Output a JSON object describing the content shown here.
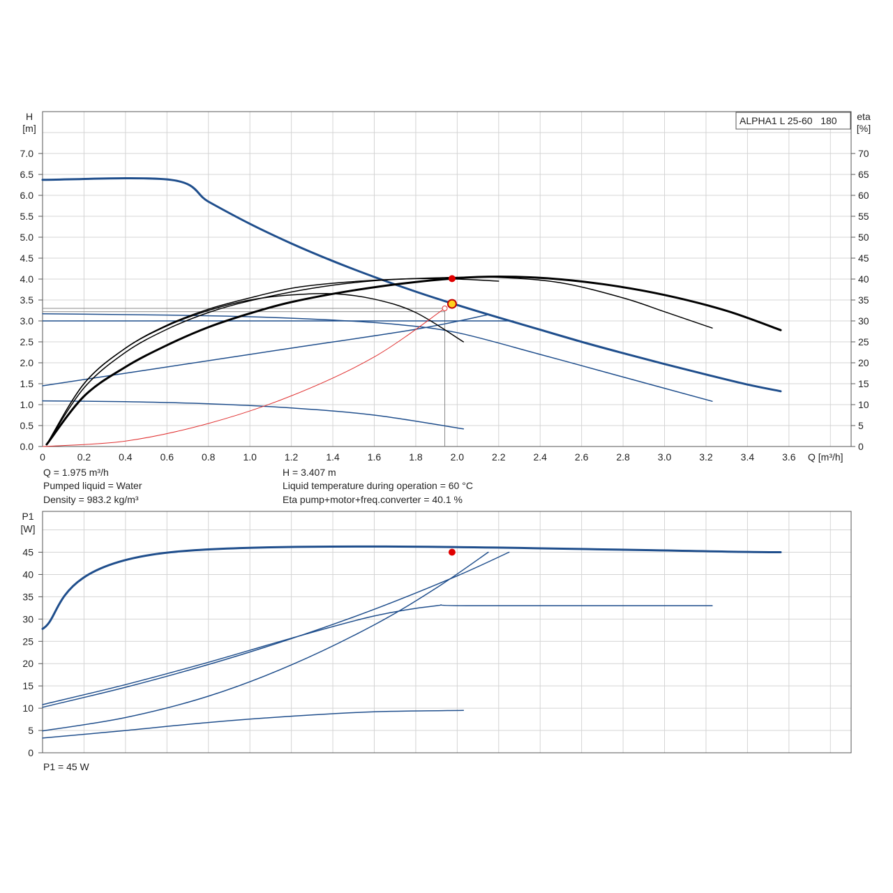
{
  "chart_data": [
    {
      "type": "line",
      "name_box": "ALPHA1 L 25-60   180",
      "xlabel": "Q [m³/h]",
      "ylabel_top": "H",
      "ylabel_bottom": "[m]",
      "y2label_top": "eta",
      "y2label_bottom": "[%]",
      "xlim": [
        0,
        3.9
      ],
      "ylim": [
        0,
        8
      ],
      "y2lim": [
        0,
        80
      ],
      "x_ticks": [
        "0",
        "0.2",
        "0.4",
        "0.6",
        "0.8",
        "1.0",
        "1.2",
        "1.4",
        "1.6",
        "1.8",
        "2.0",
        "2.2",
        "2.4",
        "2.6",
        "2.8",
        "3.0",
        "3.2",
        "3.4",
        "3.6"
      ],
      "y_ticks": [
        "0.0",
        "0.5",
        "1.0",
        "1.5",
        "2.0",
        "2.5",
        "3.0",
        "3.5",
        "4.0",
        "4.5",
        "5.0",
        "5.5",
        "6.0",
        "6.5",
        "7.0"
      ],
      "y2_ticks": [
        "0",
        "5",
        "10",
        "15",
        "20",
        "25",
        "30",
        "35",
        "40",
        "45",
        "50",
        "55",
        "60",
        "65",
        "70"
      ],
      "grid": true,
      "series": [
        {
          "color": "#1f4e8c",
          "width": 3,
          "x": [
            0,
            0.62,
            0.8,
            1.0,
            1.2,
            1.4,
            1.6,
            1.8,
            2.0,
            2.2,
            2.4,
            2.6,
            2.8,
            3.0,
            3.2,
            3.4,
            3.56
          ],
          "y": [
            6.37,
            6.37,
            5.85,
            5.32,
            4.85,
            4.43,
            4.05,
            3.7,
            3.38,
            3.08,
            2.79,
            2.5,
            2.23,
            1.97,
            1.72,
            1.48,
            1.32
          ]
        },
        {
          "color": "#1f4e8c",
          "width": 1.5,
          "x": [
            0,
            0.6,
            1.0,
            1.4,
            1.7,
            2.0,
            2.4,
            2.8,
            3.23
          ],
          "y": [
            3.17,
            3.14,
            3.1,
            3.02,
            2.92,
            2.72,
            2.2,
            1.66,
            1.08
          ]
        },
        {
          "color": "#1f4e8c",
          "width": 1.5,
          "x": [
            0,
            2.27
          ],
          "y": [
            3.0,
            3.0
          ]
        },
        {
          "color": "#1f4e8c",
          "width": 1.5,
          "x": [
            0,
            0.6,
            1.2,
            1.8,
            2.15
          ],
          "y": [
            1.45,
            1.9,
            2.35,
            2.8,
            3.15
          ]
        },
        {
          "color": "#1f4e8c",
          "width": 1.5,
          "x": [
            0,
            0.4,
            0.8,
            1.2,
            1.6,
            2.03
          ],
          "y": [
            1.09,
            1.07,
            1.02,
            0.92,
            0.75,
            0.42
          ]
        },
        {
          "color": "#000000",
          "width": 3,
          "x": [
            0.02,
            0.2,
            0.4,
            0.6,
            0.8,
            1.0,
            1.2,
            1.5,
            1.8,
            2.1,
            2.4,
            2.7,
            3.0,
            3.3,
            3.56
          ],
          "y": [
            0.05,
            1.2,
            1.9,
            2.42,
            2.85,
            3.18,
            3.45,
            3.73,
            3.93,
            4.05,
            4.03,
            3.88,
            3.62,
            3.24,
            2.78
          ]
        },
        {
          "color": "#000000",
          "width": 1.5,
          "x": [
            0.02,
            0.2,
            0.4,
            0.6,
            0.8,
            1.0,
            1.3,
            1.6,
            1.9,
            2.2,
            2.5,
            2.8,
            3.0,
            3.23
          ],
          "y": [
            0.05,
            1.4,
            2.25,
            2.8,
            3.2,
            3.48,
            3.78,
            3.96,
            4.03,
            4.04,
            3.91,
            3.55,
            3.22,
            2.83
          ]
        },
        {
          "color": "#000000",
          "width": 1.5,
          "x": [
            0.02,
            0.2,
            0.4,
            0.6,
            0.8,
            1.0,
            1.2,
            1.4,
            1.6,
            1.8,
            2.0,
            2.2
          ],
          "y": [
            0.05,
            1.5,
            2.35,
            2.9,
            3.28,
            3.55,
            3.78,
            3.9,
            3.97,
            4.01,
            4.0,
            3.95
          ]
        },
        {
          "color": "#000000",
          "width": 1.5,
          "x": [
            0.02,
            0.2,
            0.4,
            0.6,
            0.8,
            1.0,
            1.2,
            1.4,
            1.6,
            1.8,
            2.03
          ],
          "y": [
            0.05,
            1.5,
            2.35,
            2.88,
            3.25,
            3.5,
            3.62,
            3.65,
            3.52,
            3.2,
            2.5
          ]
        },
        {
          "color": "#e03030",
          "width": 1,
          "x": [
            0,
            0.4,
            0.8,
            1.2,
            1.6,
            1.94
          ],
          "y": [
            0.0,
            0.13,
            0.55,
            1.21,
            2.14,
            3.3
          ]
        }
      ],
      "reference_lines": {
        "color": "#888888",
        "h_values": [
          3.3,
          3.22
        ],
        "v_value": 1.94
      },
      "markers": [
        {
          "x": 1.975,
          "y": 4.01,
          "color": "#e00000",
          "ring": false
        },
        {
          "x": 1.975,
          "y": 3.407,
          "color": "#ffd21e",
          "ring": true
        },
        {
          "x": 1.94,
          "y": 3.3,
          "color": "#ffffff",
          "ring": false,
          "edge": "#e03030"
        }
      ]
    },
    {
      "type": "line",
      "ylabel_top": "P1",
      "ylabel_bottom": "[W]",
      "xlim": [
        0,
        3.9
      ],
      "ylim": [
        0,
        50
      ],
      "y_ticks": [
        "0",
        "5",
        "10",
        "15",
        "20",
        "25",
        "30",
        "35",
        "40",
        "45"
      ],
      "grid": true,
      "series": [
        {
          "color": "#1f4e8c",
          "width": 3,
          "x": [
            0,
            0.62,
            3.56
          ],
          "y": [
            27.8,
            45.0,
            45.0
          ]
        },
        {
          "color": "#1f4e8c",
          "width": 1.5,
          "x": [
            0,
            0.4,
            0.8,
            1.2,
            1.6,
            1.9,
            2.05,
            3.23
          ],
          "y": [
            10.8,
            15.3,
            20.3,
            25.7,
            30.7,
            33.0,
            33.0,
            33.0
          ]
        },
        {
          "color": "#1f4e8c",
          "width": 1.5,
          "x": [
            0,
            0.4,
            0.8,
            1.2,
            1.6,
            2.0,
            2.25
          ],
          "y": [
            10.2,
            14.7,
            19.8,
            25.6,
            32.2,
            39.7,
            45.0
          ]
        },
        {
          "color": "#1f4e8c",
          "width": 1.5,
          "x": [
            0,
            0.4,
            0.8,
            1.2,
            1.6,
            1.9,
            2.15
          ],
          "y": [
            4.9,
            7.9,
            12.7,
            19.7,
            28.7,
            37.0,
            45.0
          ]
        },
        {
          "color": "#1f4e8c",
          "width": 1.5,
          "x": [
            0,
            0.4,
            0.8,
            1.2,
            1.6,
            2.03
          ],
          "y": [
            3.3,
            5.0,
            6.8,
            8.2,
            9.2,
            9.5
          ]
        }
      ],
      "markers": [
        {
          "x": 1.975,
          "y": 45.0,
          "color": "#e00000",
          "ring": false
        }
      ]
    }
  ],
  "info": {
    "q": "Q = 1.975 m³/h",
    "h": "H = 3.407 m",
    "liquid": "Pumped liquid = Water",
    "temperature": "Liquid temperature during operation = 60 °C",
    "density": "Density = 983.2 kg/m³",
    "eta": "Eta pump+motor+freq.converter = 40.1 %",
    "p1": "P1 = 45 W"
  }
}
